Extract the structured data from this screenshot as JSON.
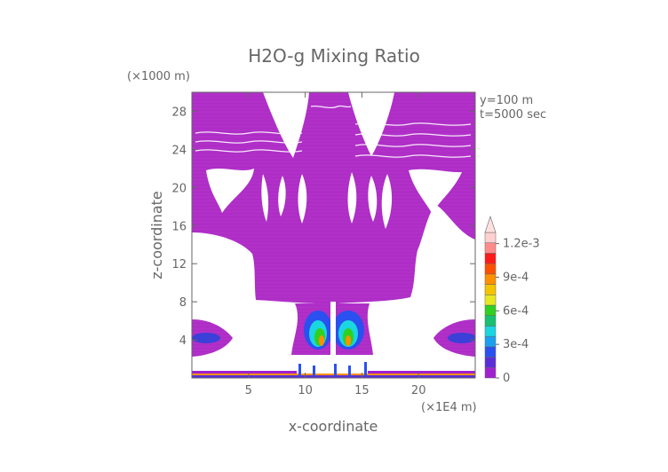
{
  "chart_data": {
    "type": "heatmap",
    "title": "H2O-g Mixing Ratio",
    "xlabel": "x-coordinate",
    "ylabel": "z-coordinate",
    "x_unit": "(×1E4 m)",
    "y_unit": "(×1000 m)",
    "annotations": [
      "y=100  m",
      "t=5000 sec"
    ],
    "xlim": [
      0,
      25
    ],
    "ylim": [
      0,
      30
    ],
    "x_ticks": [
      5,
      10,
      15,
      20
    ],
    "y_ticks": [
      4,
      8,
      12,
      16,
      20,
      24,
      28
    ],
    "colorbar": {
      "min": 0,
      "max": 0.0013,
      "tick_values": [
        0,
        0.0003,
        0.0006,
        0.0009,
        0.0012
      ],
      "tick_labels": [
        "0",
        "3e-4",
        "6e-4",
        "9e-4",
        "1.2e-3"
      ],
      "colors": [
        "#a020d0",
        "#5a2dd8",
        "#2a50f0",
        "#1aa0f0",
        "#19d6e0",
        "#18c070",
        "#30d020",
        "#e8e820",
        "#f5c400",
        "#ff9000",
        "#ff5000",
        "#ff1a1a",
        "#ff8a8a",
        "#ffd0d0"
      ],
      "extend": "max"
    },
    "grid": false,
    "description_regions": {
      "background_value": "low (white)",
      "main_field_color": "#b030c8"
    }
  }
}
